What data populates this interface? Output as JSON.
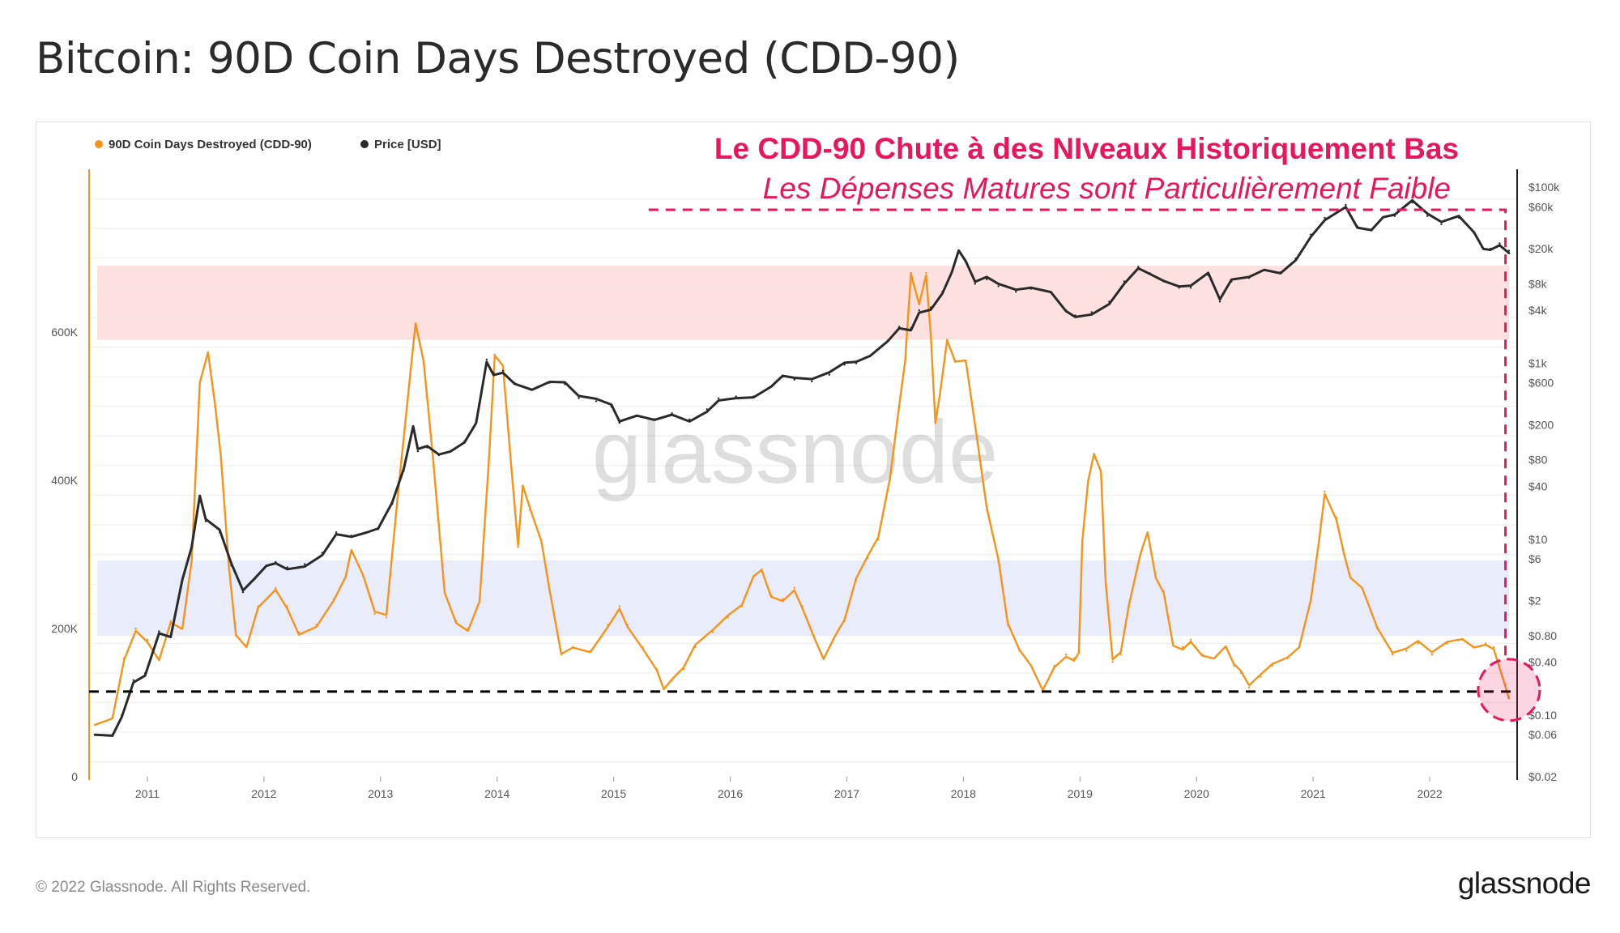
{
  "page": {
    "title": "Bitcoin: 90D Coin Days Destroyed (CDD-90)",
    "copyright": "© 2022 Glassnode. All Rights Reserved.",
    "brand": "glassnode"
  },
  "colors": {
    "cdd": "#f7931a",
    "price": "#2a2a2a",
    "annotation": "#e8175d",
    "high_band": "#fde1e1",
    "low_band": "#e9ecfb"
  },
  "chart_data": {
    "type": "line",
    "title": "Bitcoin: 90D Coin Days Destroyed (CDD-90)",
    "watermark": "glassnode",
    "legend": {
      "placement": "top-left",
      "entries": [
        {
          "name": "90D Coin Days Destroyed (CDD-90)",
          "color": "#f7931a"
        },
        {
          "name": "Price [USD]",
          "color": "#2a2a2a"
        }
      ]
    },
    "x": {
      "range": [
        2010.5,
        2022.75
      ],
      "ticks": [
        2011,
        2012,
        2013,
        2014,
        2015,
        2016,
        2017,
        2018,
        2019,
        2020,
        2021,
        2022
      ],
      "tick_labels": [
        "2011",
        "2012",
        "2013",
        "2014",
        "2015",
        "2016",
        "2017",
        "2018",
        "2019",
        "2020",
        "2021",
        "2022"
      ]
    },
    "y_left": {
      "label": "",
      "range": [
        0,
        820000
      ],
      "ticks": [
        0,
        200000,
        400000,
        600000
      ],
      "tick_labels": [
        "0",
        "200K",
        "400K",
        "600K"
      ]
    },
    "y_right": {
      "label": "",
      "scale": "log",
      "range": [
        0.02,
        160000
      ],
      "ticks": [
        0.02,
        0.06,
        0.1,
        0.4,
        0.8,
        2,
        6,
        10,
        40,
        80,
        200,
        600,
        1000,
        4000,
        8000,
        20000,
        60000,
        100000
      ],
      "tick_labels": [
        "$0.02",
        "$0.06",
        "$0.10",
        "$0.40",
        "$0.80",
        "$2",
        "$6",
        "$10",
        "$40",
        "$80",
        "$200",
        "$600",
        "$1k",
        "$4k",
        "$8k",
        "$20k",
        "$60k",
        "$100k"
      ]
    },
    "bands": [
      {
        "name": "high",
        "from": 590000,
        "to": 690000
      },
      {
        "name": "low",
        "from": 190000,
        "to": 292000
      }
    ],
    "reference_line": {
      "value": 115000,
      "style": "dashed"
    },
    "annotation": {
      "line1": "Le CDD-90 Chute à des NIveaux Historiquement Bas",
      "line2": "Les Dépenses Matures sont Particulièrement Faible"
    },
    "series": [
      {
        "name": "90D Coin Days Destroyed (CDD-90)",
        "axis": "left",
        "points": [
          [
            2010.55,
            70000
          ],
          [
            2010.7,
            80000
          ],
          [
            2010.8,
            160000
          ],
          [
            2010.9,
            200000
          ],
          [
            2011.0,
            185000
          ],
          [
            2011.1,
            160000
          ],
          [
            2011.2,
            210000
          ],
          [
            2011.3,
            200000
          ],
          [
            2011.38,
            290000
          ],
          [
            2011.45,
            530000
          ],
          [
            2011.52,
            570000
          ],
          [
            2011.58,
            500000
          ],
          [
            2011.63,
            430000
          ],
          [
            2011.7,
            280000
          ],
          [
            2011.76,
            190000
          ],
          [
            2011.85,
            175000
          ],
          [
            2011.95,
            230000
          ],
          [
            2012.1,
            255000
          ],
          [
            2012.2,
            230000
          ],
          [
            2012.3,
            195000
          ],
          [
            2012.45,
            205000
          ],
          [
            2012.6,
            240000
          ],
          [
            2012.7,
            270000
          ],
          [
            2012.75,
            305000
          ],
          [
            2012.85,
            270000
          ],
          [
            2012.95,
            220000
          ],
          [
            2013.05,
            215000
          ],
          [
            2013.15,
            380000
          ],
          [
            2013.3,
            610000
          ],
          [
            2013.37,
            560000
          ],
          [
            2013.45,
            430000
          ],
          [
            2013.55,
            250000
          ],
          [
            2013.65,
            210000
          ],
          [
            2013.75,
            200000
          ],
          [
            2013.85,
            240000
          ],
          [
            2013.93,
            430000
          ],
          [
            2013.98,
            570000
          ],
          [
            2014.05,
            555000
          ],
          [
            2014.12,
            420000
          ],
          [
            2014.18,
            310000
          ],
          [
            2014.22,
            390000
          ],
          [
            2014.28,
            360000
          ],
          [
            2014.38,
            315000
          ],
          [
            2014.45,
            250000
          ],
          [
            2014.55,
            165000
          ],
          [
            2014.65,
            175000
          ],
          [
            2014.8,
            170000
          ],
          [
            2014.95,
            205000
          ],
          [
            2015.05,
            230000
          ],
          [
            2015.12,
            205000
          ],
          [
            2015.25,
            175000
          ],
          [
            2015.37,
            145000
          ],
          [
            2015.43,
            118000
          ],
          [
            2015.5,
            130000
          ],
          [
            2015.6,
            145000
          ],
          [
            2015.7,
            175000
          ],
          [
            2015.85,
            195000
          ],
          [
            2015.98,
            215000
          ],
          [
            2016.1,
            230000
          ],
          [
            2016.2,
            270000
          ],
          [
            2016.27,
            280000
          ],
          [
            2016.35,
            245000
          ],
          [
            2016.45,
            240000
          ],
          [
            2016.55,
            255000
          ],
          [
            2016.62,
            230000
          ],
          [
            2016.72,
            190000
          ],
          [
            2016.8,
            160000
          ],
          [
            2016.9,
            190000
          ],
          [
            2016.98,
            210000
          ],
          [
            2017.08,
            265000
          ],
          [
            2017.18,
            295000
          ],
          [
            2017.27,
            320000
          ],
          [
            2017.37,
            400000
          ],
          [
            2017.45,
            500000
          ],
          [
            2017.5,
            560000
          ],
          [
            2017.55,
            680000
          ],
          [
            2017.62,
            640000
          ],
          [
            2017.68,
            680000
          ],
          [
            2017.72,
            600000
          ],
          [
            2017.76,
            480000
          ],
          [
            2017.8,
            520000
          ],
          [
            2017.86,
            590000
          ],
          [
            2017.93,
            560000
          ],
          [
            2018.02,
            560000
          ],
          [
            2018.12,
            450000
          ],
          [
            2018.2,
            360000
          ],
          [
            2018.3,
            290000
          ],
          [
            2018.38,
            205000
          ],
          [
            2018.48,
            170000
          ],
          [
            2018.58,
            150000
          ],
          [
            2018.68,
            118000
          ],
          [
            2018.78,
            150000
          ],
          [
            2018.88,
            165000
          ],
          [
            2018.95,
            160000
          ],
          [
            2018.99,
            170000
          ],
          [
            2019.02,
            320000
          ],
          [
            2019.07,
            400000
          ],
          [
            2019.12,
            435000
          ],
          [
            2019.18,
            410000
          ],
          [
            2019.22,
            260000
          ],
          [
            2019.28,
            155000
          ],
          [
            2019.35,
            165000
          ],
          [
            2019.42,
            230000
          ],
          [
            2019.52,
            300000
          ],
          [
            2019.58,
            330000
          ],
          [
            2019.65,
            270000
          ],
          [
            2019.72,
            250000
          ],
          [
            2019.8,
            180000
          ],
          [
            2019.88,
            175000
          ],
          [
            2019.95,
            185000
          ],
          [
            2020.05,
            165000
          ],
          [
            2020.15,
            160000
          ],
          [
            2020.25,
            175000
          ],
          [
            2020.32,
            150000
          ],
          [
            2020.38,
            140000
          ],
          [
            2020.45,
            120000
          ],
          [
            2020.55,
            135000
          ],
          [
            2020.65,
            150000
          ],
          [
            2020.78,
            160000
          ],
          [
            2020.88,
            175000
          ],
          [
            2020.98,
            240000
          ],
          [
            2021.05,
            320000
          ],
          [
            2021.1,
            385000
          ],
          [
            2021.2,
            350000
          ],
          [
            2021.27,
            300000
          ],
          [
            2021.32,
            270000
          ],
          [
            2021.42,
            255000
          ],
          [
            2021.55,
            200000
          ],
          [
            2021.68,
            165000
          ],
          [
            2021.8,
            170000
          ],
          [
            2021.9,
            180000
          ],
          [
            2022.02,
            165000
          ],
          [
            2022.15,
            180000
          ],
          [
            2022.28,
            185000
          ],
          [
            2022.38,
            175000
          ],
          [
            2022.48,
            180000
          ],
          [
            2022.55,
            175000
          ],
          [
            2022.6,
            150000
          ],
          [
            2022.65,
            125000
          ],
          [
            2022.68,
            108000
          ]
        ]
      },
      {
        "name": "Price [USD]",
        "axis": "right",
        "points": [
          [
            2010.55,
            0.06
          ],
          [
            2010.7,
            0.06
          ],
          [
            2010.78,
            0.1
          ],
          [
            2010.88,
            0.25
          ],
          [
            2010.98,
            0.3
          ],
          [
            2011.1,
            0.9
          ],
          [
            2011.2,
            0.8
          ],
          [
            2011.3,
            3.5
          ],
          [
            2011.38,
            8
          ],
          [
            2011.45,
            30
          ],
          [
            2011.5,
            16
          ],
          [
            2011.62,
            12
          ],
          [
            2011.72,
            5
          ],
          [
            2011.82,
            2.5
          ],
          [
            2011.92,
            3.5
          ],
          [
            2012.02,
            5
          ],
          [
            2012.1,
            5.5
          ],
          [
            2012.2,
            4.8
          ],
          [
            2012.35,
            5.2
          ],
          [
            2012.5,
            7
          ],
          [
            2012.62,
            12
          ],
          [
            2012.75,
            11
          ],
          [
            2012.88,
            12
          ],
          [
            2012.98,
            13
          ],
          [
            2013.1,
            25
          ],
          [
            2013.2,
            60
          ],
          [
            2013.28,
            180
          ],
          [
            2013.32,
            100
          ],
          [
            2013.4,
            110
          ],
          [
            2013.5,
            90
          ],
          [
            2013.6,
            100
          ],
          [
            2013.72,
            130
          ],
          [
            2013.82,
            220
          ],
          [
            2013.91,
            1100
          ],
          [
            2013.97,
            780
          ],
          [
            2014.05,
            820
          ],
          [
            2014.15,
            600
          ],
          [
            2014.3,
            500
          ],
          [
            2014.45,
            600
          ],
          [
            2014.58,
            580
          ],
          [
            2014.7,
            400
          ],
          [
            2014.85,
            370
          ],
          [
            2014.98,
            320
          ],
          [
            2015.05,
            210
          ],
          [
            2015.2,
            250
          ],
          [
            2015.35,
            230
          ],
          [
            2015.5,
            270
          ],
          [
            2015.65,
            230
          ],
          [
            2015.8,
            300
          ],
          [
            2015.9,
            400
          ],
          [
            2016.05,
            420
          ],
          [
            2016.2,
            420
          ],
          [
            2016.35,
            540
          ],
          [
            2016.45,
            700
          ],
          [
            2016.55,
            650
          ],
          [
            2016.7,
            620
          ],
          [
            2016.85,
            740
          ],
          [
            2016.98,
            960
          ],
          [
            2017.08,
            1000
          ],
          [
            2017.2,
            1200
          ],
          [
            2017.35,
            1800
          ],
          [
            2017.45,
            2600
          ],
          [
            2017.55,
            2500
          ],
          [
            2017.62,
            4000
          ],
          [
            2017.72,
            4300
          ],
          [
            2017.82,
            6500
          ],
          [
            2017.9,
            11000
          ],
          [
            2017.96,
            19000
          ],
          [
            2018.02,
            14000
          ],
          [
            2018.1,
            8000
          ],
          [
            2018.2,
            9000
          ],
          [
            2018.3,
            7500
          ],
          [
            2018.45,
            6500
          ],
          [
            2018.58,
            7000
          ],
          [
            2018.75,
            6400
          ],
          [
            2018.88,
            4000
          ],
          [
            2018.96,
            3500
          ],
          [
            2019.1,
            3800
          ],
          [
            2019.25,
            5000
          ],
          [
            2019.38,
            8500
          ],
          [
            2019.5,
            12500
          ],
          [
            2019.6,
            10500
          ],
          [
            2019.72,
            8500
          ],
          [
            2019.85,
            7200
          ],
          [
            2019.95,
            7200
          ],
          [
            2020.1,
            10000
          ],
          [
            2020.2,
            5000
          ],
          [
            2020.3,
            8500
          ],
          [
            2020.45,
            9300
          ],
          [
            2020.58,
            11500
          ],
          [
            2020.72,
            10800
          ],
          [
            2020.85,
            15500
          ],
          [
            2020.98,
            29000
          ],
          [
            2021.1,
            45000
          ],
          [
            2021.28,
            63000
          ],
          [
            2021.38,
            36000
          ],
          [
            2021.5,
            33000
          ],
          [
            2021.6,
            45000
          ],
          [
            2021.7,
            47000
          ],
          [
            2021.85,
            67000
          ],
          [
            2021.98,
            47000
          ],
          [
            2022.1,
            38000
          ],
          [
            2022.25,
            45000
          ],
          [
            2022.38,
            30000
          ],
          [
            2022.46,
            20000
          ],
          [
            2022.52,
            20000
          ],
          [
            2022.6,
            23000
          ],
          [
            2022.68,
            19000
          ]
        ]
      }
    ]
  }
}
